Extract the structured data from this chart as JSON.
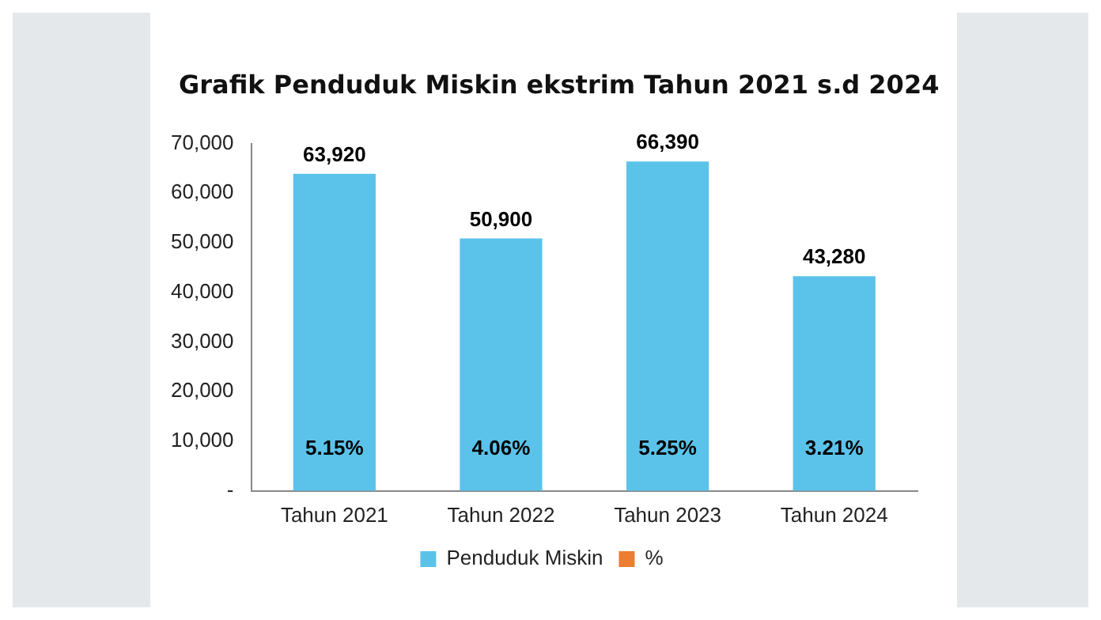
{
  "chart_data": {
    "type": "bar",
    "title": "Grafik Penduduk Miskin ekstrim Tahun 2021 s.d 2024",
    "categories": [
      "Tahun 2021",
      "Tahun 2022",
      "Tahun 2023",
      "Tahun 2024"
    ],
    "series": [
      {
        "name": "Penduduk Miskin",
        "color": "#5bc3ea",
        "values": [
          63920,
          50900,
          66390,
          43280
        ],
        "value_labels": [
          "63,920",
          "50,900",
          "66,390",
          "43,280"
        ]
      },
      {
        "name": "%",
        "color": "#ed7d31",
        "values": [
          5.15,
          4.06,
          5.25,
          3.21
        ],
        "value_labels": [
          "5.15%",
          "4.06%",
          "5.25%",
          "3.21%"
        ]
      }
    ],
    "ylim": [
      0,
      70000
    ],
    "yticks": [
      {
        "value": 0,
        "label": "-"
      },
      {
        "value": 10000,
        "label": "10,000"
      },
      {
        "value": 20000,
        "label": "20,000"
      },
      {
        "value": 30000,
        "label": "30,000"
      },
      {
        "value": 40000,
        "label": "40,000"
      },
      {
        "value": 50000,
        "label": "50,000"
      },
      {
        "value": 60000,
        "label": "60,000"
      },
      {
        "value": 70000,
        "label": "70,000"
      }
    ],
    "grid": false,
    "legend": "bottom"
  }
}
